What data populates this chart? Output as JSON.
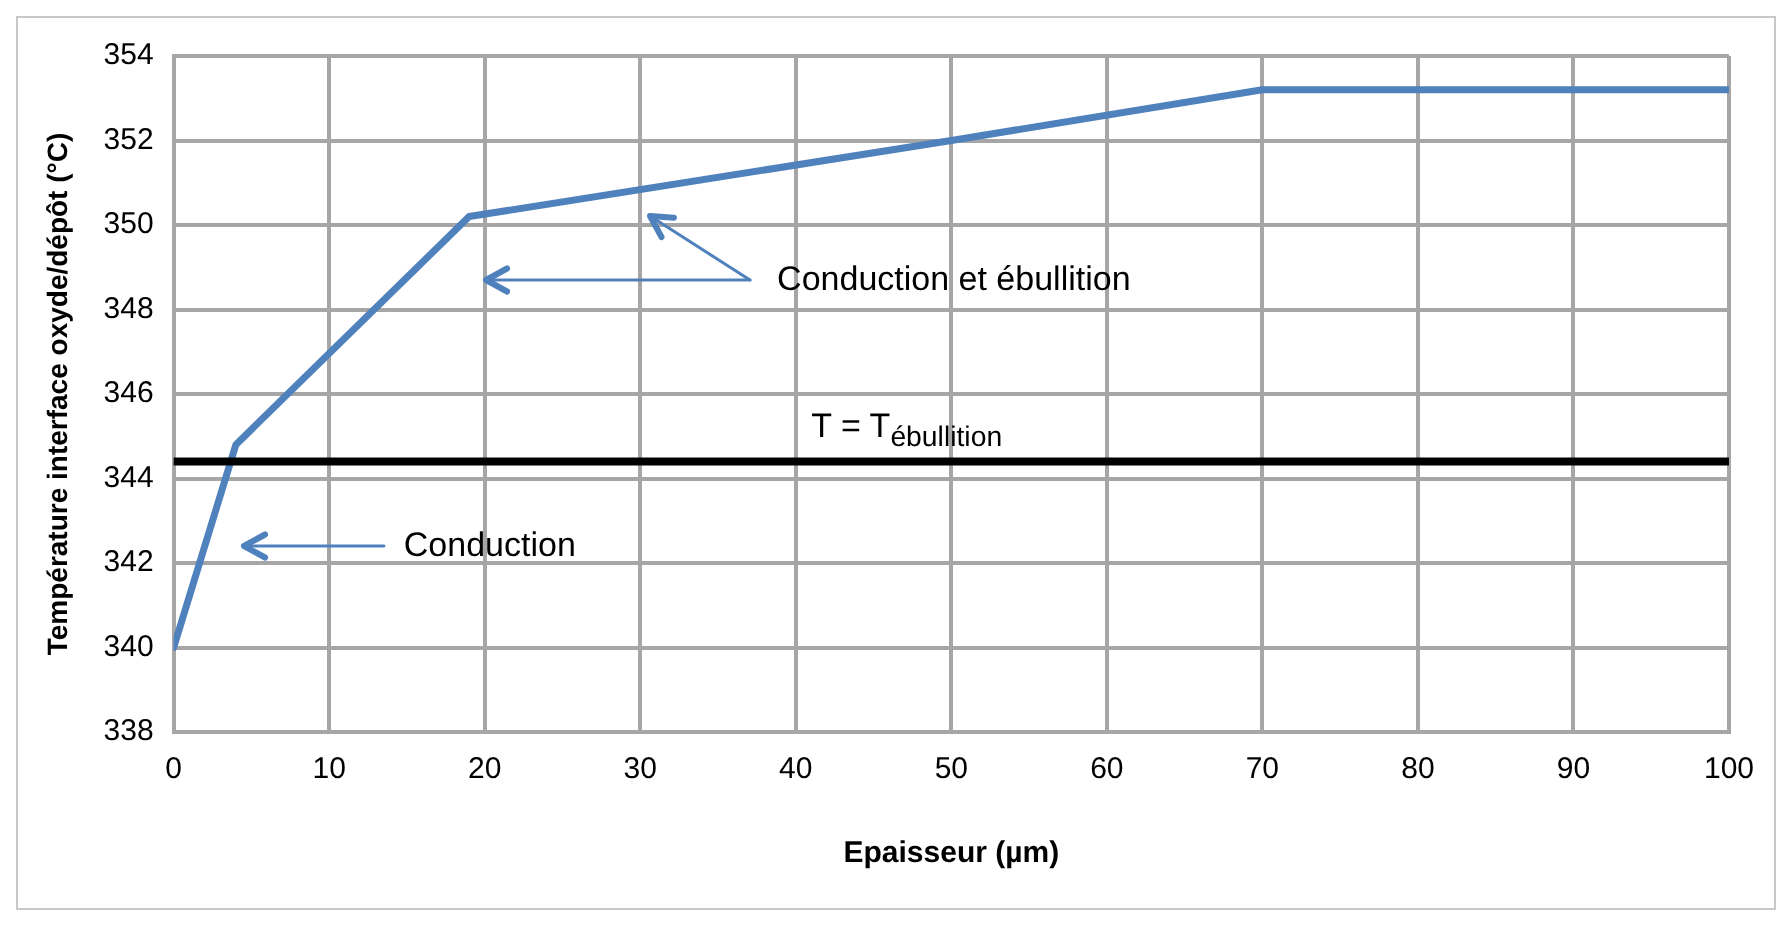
{
  "chart_data": {
    "type": "line",
    "xlabel": "Epaisseur (µm)",
    "ylabel": "Température interface oxyde/dépôt (°C)",
    "x": [
      0,
      4,
      19,
      50,
      70,
      100
    ],
    "series": [
      {
        "color": "#4f81bd",
        "values": [
          340,
          344.8,
          350.2,
          352,
          353.2,
          353.2
        ]
      }
    ],
    "xlim": [
      0,
      100
    ],
    "xticks": [
      0,
      10,
      20,
      30,
      40,
      50,
      60,
      70,
      80,
      90,
      100
    ],
    "ylim": [
      338,
      354
    ],
    "yticks": [
      338,
      340,
      342,
      344,
      346,
      348,
      350,
      352,
      354
    ],
    "grid": true,
    "legend": false,
    "marker": "none",
    "line_style": "solid",
    "ref_lines": [
      {
        "axis": "y",
        "value": 344.4,
        "label": "T = T$_{ébullition}$",
        "color": "#000000"
      }
    ],
    "annotations": [
      "Conduction",
      "Conduction et ébullition"
    ]
  }
}
